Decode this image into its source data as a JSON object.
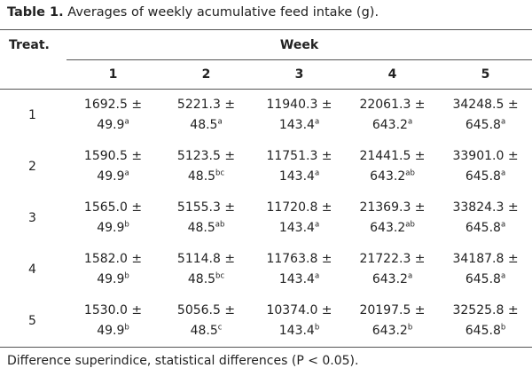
{
  "caption": {
    "label": "Table 1.",
    "text": "Averages of weekly acumulative feed intake (g)."
  },
  "header": {
    "treat": "Treat.",
    "week": "Week",
    "weeks": [
      "1",
      "2",
      "3",
      "4",
      "5"
    ]
  },
  "rows": [
    {
      "treat": "1",
      "cells": [
        {
          "mean": "1692.5 ±",
          "se": "49.9",
          "sup": "a"
        },
        {
          "mean": "5221.3 ±",
          "se": "48.5",
          "sup": "a"
        },
        {
          "mean": "11940.3 ±",
          "se": "143.4",
          "sup": "a"
        },
        {
          "mean": "22061.3 ±",
          "se": "643.2",
          "sup": "a"
        },
        {
          "mean": "34248.5 ±",
          "se": "645.8",
          "sup": "a"
        }
      ]
    },
    {
      "treat": "2",
      "cells": [
        {
          "mean": "1590.5 ±",
          "se": "49.9",
          "sup": "a"
        },
        {
          "mean": "5123.5 ±",
          "se": "48.5",
          "sup": "bc"
        },
        {
          "mean": "11751.3 ±",
          "se": "143.4",
          "sup": "a"
        },
        {
          "mean": "21441.5 ±",
          "se": "643.2",
          "sup": "ab"
        },
        {
          "mean": "33901.0 ±",
          "se": "645.8",
          "sup": "a"
        }
      ]
    },
    {
      "treat": "3",
      "cells": [
        {
          "mean": "1565.0 ±",
          "se": "49.9",
          "sup": "b"
        },
        {
          "mean": "5155.3 ±",
          "se": "48.5",
          "sup": "ab"
        },
        {
          "mean": "11720.8 ±",
          "se": "143.4",
          "sup": "a"
        },
        {
          "mean": "21369.3 ±",
          "se": "643.2",
          "sup": "ab"
        },
        {
          "mean": "33824.3 ±",
          "se": "645.8",
          "sup": "a"
        }
      ]
    },
    {
      "treat": "4",
      "cells": [
        {
          "mean": "1582.0 ±",
          "se": "49.9",
          "sup": "b"
        },
        {
          "mean": "5114.8 ±",
          "se": "48.5",
          "sup": "bc"
        },
        {
          "mean": "11763.8 ±",
          "se": "143.4",
          "sup": "a"
        },
        {
          "mean": "21722.3 ±",
          "se": "643.2",
          "sup": "a"
        },
        {
          "mean": "34187.8 ±",
          "se": "645.8",
          "sup": "a"
        }
      ]
    },
    {
      "treat": "5",
      "cells": [
        {
          "mean": "1530.0 ±",
          "se": "49.9",
          "sup": "b"
        },
        {
          "mean": "5056.5 ±",
          "se": "48.5",
          "sup": "c"
        },
        {
          "mean": "10374.0 ±",
          "se": "143.4",
          "sup": "b"
        },
        {
          "mean": "20197.5 ±",
          "se": "643.2",
          "sup": "b"
        },
        {
          "mean": "32525.8 ±",
          "se": "645.8",
          "sup": "b"
        }
      ]
    }
  ],
  "footnote": "Difference superindice, statistical differences (P < 0.05)."
}
